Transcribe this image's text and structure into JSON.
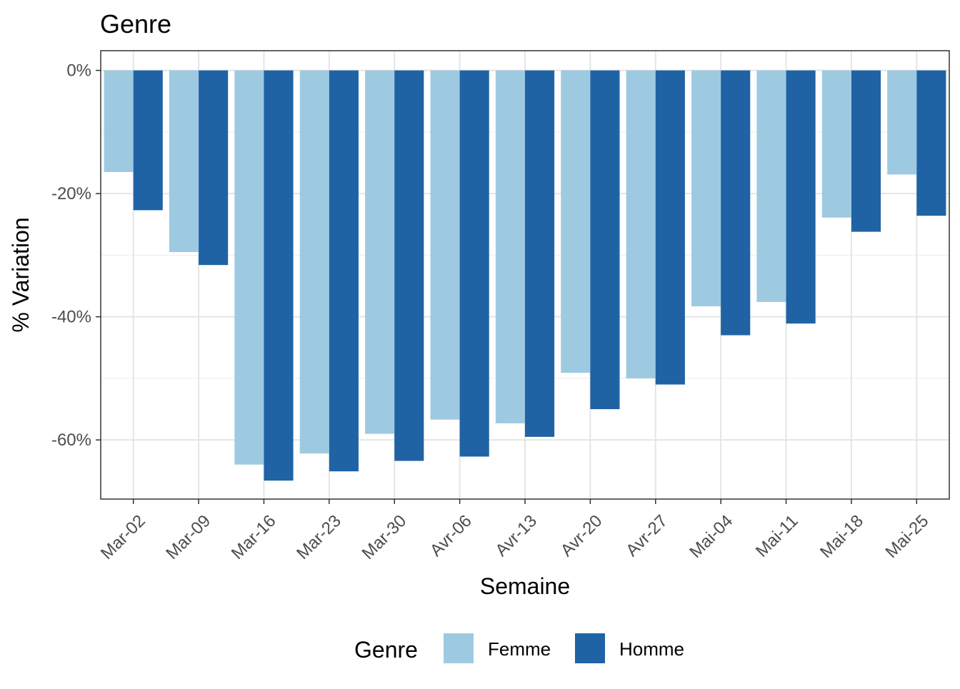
{
  "chart_data": {
    "type": "bar",
    "title": "Genre",
    "xlabel": "Semaine",
    "ylabel": "% Variation",
    "categories": [
      "Mar-02",
      "Mar-09",
      "Mar-16",
      "Mar-23",
      "Mar-30",
      "Avr-06",
      "Avr-13",
      "Avr-20",
      "Avr-27",
      "Mai-04",
      "Mai-11",
      "Mai-18",
      "Mai-25"
    ],
    "series": [
      {
        "name": "Femme",
        "color": "#9ecae1",
        "values": [
          -16.5,
          -29.5,
          -64.0,
          -62.2,
          -59.0,
          -56.7,
          -57.3,
          -49.1,
          -50.0,
          -38.3,
          -37.6,
          -23.9,
          -16.9
        ]
      },
      {
        "name": "Homme",
        "color": "#1f63a5",
        "values": [
          -22.7,
          -31.6,
          -66.6,
          -65.1,
          -63.4,
          -62.7,
          -59.5,
          -55.0,
          -51.0,
          -43.0,
          -41.1,
          -26.2,
          -23.6
        ]
      }
    ],
    "ylim": [
      -69.6,
      3.2
    ],
    "yticks": [
      0,
      -20,
      -40,
      -60
    ],
    "ytick_labels": [
      "0%",
      "-20%",
      "-40%",
      "-60%"
    ],
    "grid": true,
    "legend": {
      "title": "Genre",
      "position": "bottom"
    }
  }
}
